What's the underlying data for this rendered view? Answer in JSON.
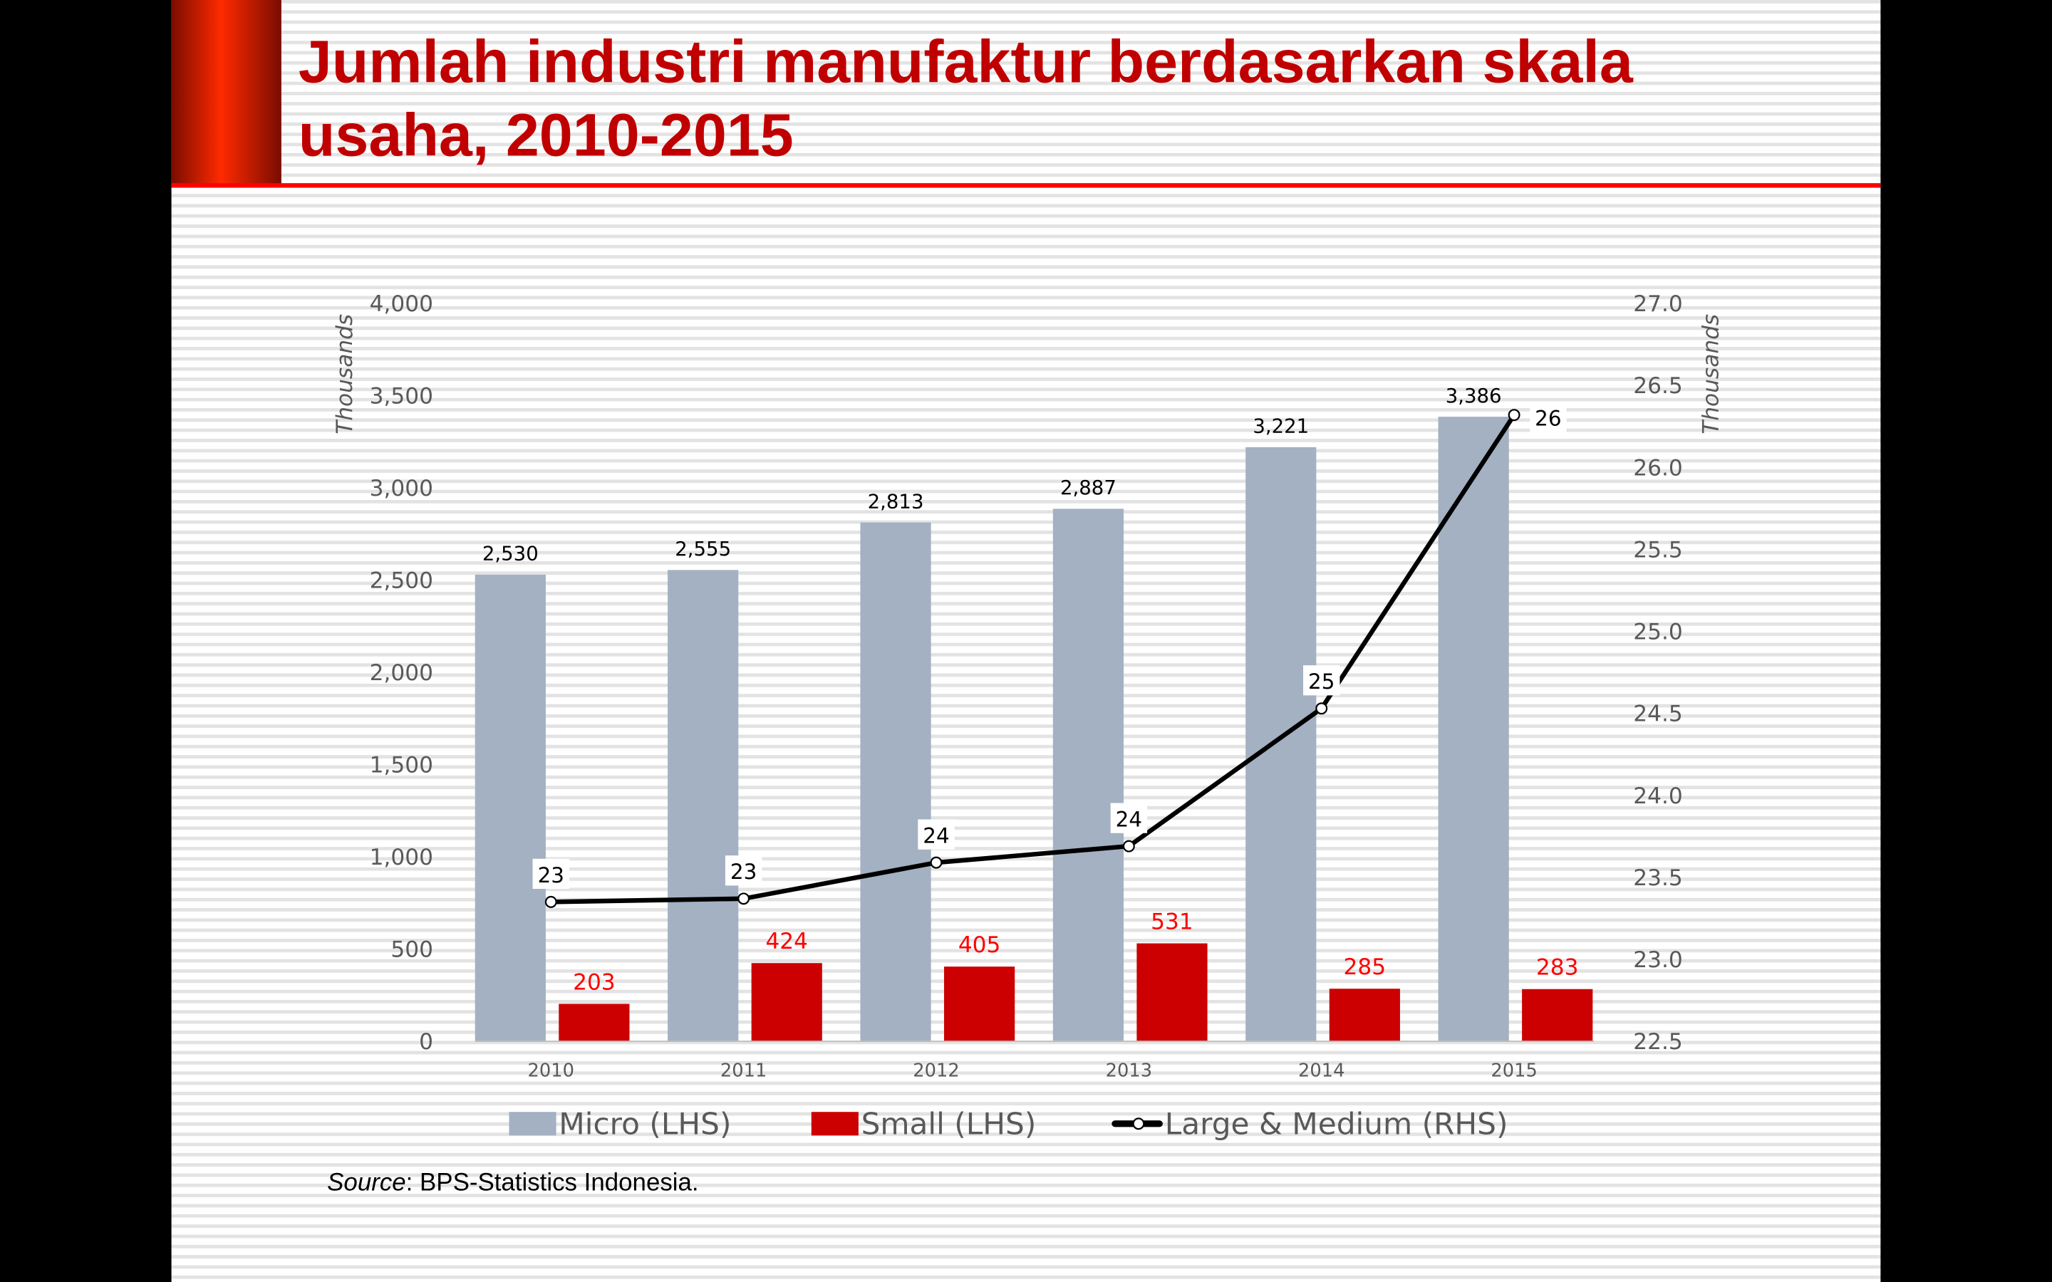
{
  "slide": {
    "title_line1": "Jumlah industri manufaktur berdasarkan skala",
    "title_line2": "usaha, 2010-2015",
    "source_label": "Source",
    "source_text": ": BPS-Statistics Indonesia.",
    "colors": {
      "title": "#c00000",
      "accent": "#ff0000",
      "micro": "#a3b1c2",
      "small": "#cc0000",
      "line": "#000000"
    }
  },
  "chart_data": {
    "type": "bar",
    "title": "Jumlah industri manufaktur berdasarkan skala usaha, 2010-2015",
    "categories": [
      "2010",
      "2011",
      "2012",
      "2013",
      "2014",
      "2015"
    ],
    "series": [
      {
        "name": "Micro (LHS)",
        "axis": "left",
        "kind": "bar",
        "values": [
          2530,
          2555,
          2813,
          2887,
          3221,
          3386
        ],
        "labels": [
          "2,530",
          "2,555",
          "2,813",
          "2,887",
          "3,221",
          "3,386"
        ]
      },
      {
        "name": "Small (LHS)",
        "axis": "left",
        "kind": "bar",
        "values": [
          203,
          424,
          405,
          531,
          285,
          283
        ],
        "labels": [
          "203",
          "424",
          "405",
          "531",
          "285",
          "283"
        ]
      },
      {
        "name": "Large & Medium (RHS)",
        "axis": "right",
        "kind": "line",
        "values": [
          23.35,
          23.37,
          23.59,
          23.69,
          24.53,
          26.32
        ],
        "labels": [
          "23",
          "23",
          "24",
          "24",
          "25",
          "26"
        ]
      }
    ],
    "ylabel": "Thousands",
    "y2label": "Thousands",
    "ylim": [
      0,
      4000
    ],
    "y2lim": [
      22.5,
      27.0
    ],
    "yticks": [
      "0",
      "500",
      "1,000",
      "1,500",
      "2,000",
      "2,500",
      "3,000",
      "3,500",
      "4,000"
    ],
    "y2ticks": [
      "22.5",
      "23.0",
      "23.5",
      "24.0",
      "24.5",
      "25.0",
      "25.5",
      "26.0",
      "26.5",
      "27.0"
    ],
    "grid": false,
    "legend": "bottom"
  }
}
